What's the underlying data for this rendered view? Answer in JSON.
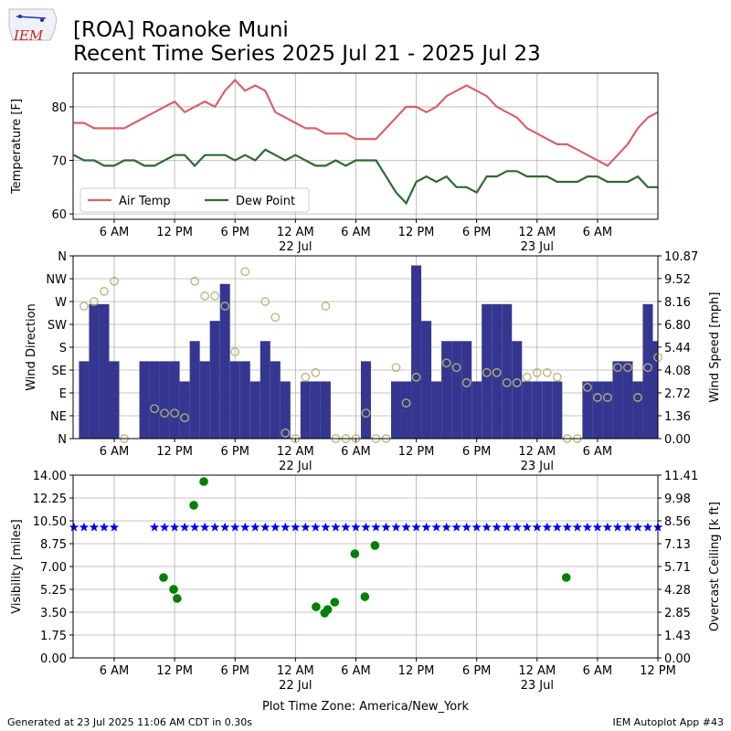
{
  "header": {
    "logo_text": "IEM",
    "title": "[ROA] Roanoke Muni",
    "subtitle": "Recent Time Series 2025 Jul 21 - 2025 Jul 23"
  },
  "footer": {
    "left": "Generated at 23 Jul 2025 11:06 AM CDT in 0.30s",
    "right": "IEM Autoplot App #43"
  },
  "chart_data": [
    {
      "type": "line",
      "ylabel": "Temperature [F]",
      "grid": true,
      "legend": "lower left",
      "xlim": [
        "2025-07-21 01:55",
        "2025-07-23 12:00"
      ],
      "xticks": [
        {
          "value": "2025-07-21 06:00",
          "label": "6 AM"
        },
        {
          "value": "2025-07-21 12:00",
          "label": "12 PM"
        },
        {
          "value": "2025-07-21 18:00",
          "label": "6 PM"
        },
        {
          "value": "2025-07-22 00:00",
          "label": "12 AM",
          "sublabel": "22 Jul"
        },
        {
          "value": "2025-07-22 06:00",
          "label": "6 AM"
        },
        {
          "value": "2025-07-22 12:00",
          "label": "12 PM"
        },
        {
          "value": "2025-07-22 18:00",
          "label": "6 PM"
        },
        {
          "value": "2025-07-23 00:00",
          "label": "12 AM",
          "sublabel": "23 Jul"
        },
        {
          "value": "2025-07-23 06:00",
          "label": "6 AM"
        }
      ],
      "ylim": [
        59,
        86.3
      ],
      "yticks": [
        60,
        70,
        80
      ],
      "x": [
        "2025-07-21 02:00",
        "2025-07-21 03:00",
        "2025-07-21 04:00",
        "2025-07-21 05:00",
        "2025-07-21 06:00",
        "2025-07-21 07:00",
        "2025-07-21 08:00",
        "2025-07-21 09:00",
        "2025-07-21 10:00",
        "2025-07-21 11:00",
        "2025-07-21 12:00",
        "2025-07-21 13:00",
        "2025-07-21 14:00",
        "2025-07-21 15:00",
        "2025-07-21 16:00",
        "2025-07-21 17:00",
        "2025-07-21 18:00",
        "2025-07-21 19:00",
        "2025-07-21 20:00",
        "2025-07-21 21:00",
        "2025-07-21 22:00",
        "2025-07-21 23:00",
        "2025-07-22 00:00",
        "2025-07-22 01:00",
        "2025-07-22 02:00",
        "2025-07-22 03:00",
        "2025-07-22 04:00",
        "2025-07-22 05:00",
        "2025-07-22 06:00",
        "2025-07-22 07:00",
        "2025-07-22 08:00",
        "2025-07-22 09:00",
        "2025-07-22 10:00",
        "2025-07-22 11:00",
        "2025-07-22 12:00",
        "2025-07-22 13:00",
        "2025-07-22 14:00",
        "2025-07-22 15:00",
        "2025-07-22 16:00",
        "2025-07-22 17:00",
        "2025-07-22 18:00",
        "2025-07-22 19:00",
        "2025-07-22 20:00",
        "2025-07-22 21:00",
        "2025-07-22 22:00",
        "2025-07-22 23:00",
        "2025-07-23 00:00",
        "2025-07-23 01:00",
        "2025-07-23 02:00",
        "2025-07-23 03:00",
        "2025-07-23 04:00",
        "2025-07-23 05:00",
        "2025-07-23 06:00",
        "2025-07-23 07:00",
        "2025-07-23 08:00",
        "2025-07-23 09:00",
        "2025-07-23 10:00",
        "2025-07-23 11:00",
        "2025-07-23 12:00"
      ],
      "series": [
        {
          "name": "Air Temp",
          "color": "#d9616b",
          "values": [
            77,
            77,
            76,
            76,
            76,
            76,
            77,
            78,
            79,
            80,
            81,
            79,
            80,
            81,
            80,
            83,
            85,
            83,
            84,
            83,
            79,
            78,
            77,
            76,
            76,
            75,
            75,
            75,
            74,
            74,
            74,
            76,
            78,
            80,
            80,
            79,
            80,
            82,
            83,
            84,
            83,
            82,
            80,
            79,
            78,
            76,
            75,
            74,
            73,
            73,
            72,
            71,
            70,
            69,
            71,
            73,
            76,
            78,
            79
          ]
        },
        {
          "name": "Dew Point",
          "color": "#2d6a32",
          "values": [
            71,
            70,
            70,
            69,
            69,
            70,
            70,
            69,
            69,
            70,
            71,
            71,
            69,
            71,
            71,
            71,
            70,
            71,
            70,
            72,
            71,
            70,
            71,
            70,
            69,
            69,
            70,
            69,
            70,
            70,
            70,
            67,
            64,
            62,
            66,
            67,
            66,
            67,
            65,
            65,
            64,
            67,
            67,
            68,
            68,
            67,
            67,
            67,
            66,
            66,
            66,
            67,
            67,
            66,
            66,
            66,
            67,
            65,
            65
          ]
        }
      ]
    },
    {
      "type": "combo",
      "ylabel": "Wind Direction",
      "y2label": "Wind Speed [mph]",
      "grid": true,
      "xlim": [
        "2025-07-21 01:55",
        "2025-07-23 12:00"
      ],
      "xticks": [
        {
          "value": "2025-07-21 06:00",
          "label": "6 AM"
        },
        {
          "value": "2025-07-21 12:00",
          "label": "12 PM"
        },
        {
          "value": "2025-07-21 18:00",
          "label": "6 PM"
        },
        {
          "value": "2025-07-22 00:00",
          "label": "12 AM",
          "sublabel": "22 Jul"
        },
        {
          "value": "2025-07-22 06:00",
          "label": "6 AM"
        },
        {
          "value": "2025-07-22 12:00",
          "label": "12 PM"
        },
        {
          "value": "2025-07-22 18:00",
          "label": "6 PM"
        },
        {
          "value": "2025-07-23 00:00",
          "label": "12 AM",
          "sublabel": "23 Jul"
        },
        {
          "value": "2025-07-23 06:00",
          "label": "6 AM"
        }
      ],
      "ylim": [
        0,
        360
      ],
      "yticks": [
        {
          "value": 0,
          "label": "N"
        },
        {
          "value": 45,
          "label": "NE"
        },
        {
          "value": 90,
          "label": "E"
        },
        {
          "value": 135,
          "label": "SE"
        },
        {
          "value": 180,
          "label": "S"
        },
        {
          "value": 225,
          "label": "SW"
        },
        {
          "value": 270,
          "label": "W"
        },
        {
          "value": 315,
          "label": "NW"
        },
        {
          "value": 360,
          "label": "N"
        }
      ],
      "y2lim": [
        0,
        10.87
      ],
      "y2ticks": [
        {
          "value": 0,
          "label": "0.00"
        },
        1.36,
        2.72,
        4.08,
        5.44,
        {
          "value": 6.8,
          "label": "6.80"
        },
        8.16,
        9.52,
        10.87
      ],
      "bar_width_hours": 1,
      "x": [
        "2025-07-21 02:00",
        "2025-07-21 03:00",
        "2025-07-21 04:00",
        "2025-07-21 05:00",
        "2025-07-21 06:00",
        "2025-07-21 07:00",
        "2025-07-21 08:00",
        "2025-07-21 09:00",
        "2025-07-21 10:00",
        "2025-07-21 11:00",
        "2025-07-21 12:00",
        "2025-07-21 13:00",
        "2025-07-21 14:00",
        "2025-07-21 15:00",
        "2025-07-21 16:00",
        "2025-07-21 17:00",
        "2025-07-21 18:00",
        "2025-07-21 19:00",
        "2025-07-21 20:00",
        "2025-07-21 21:00",
        "2025-07-21 22:00",
        "2025-07-21 23:00",
        "2025-07-22 00:00",
        "2025-07-22 01:00",
        "2025-07-22 02:00",
        "2025-07-22 03:00",
        "2025-07-22 04:00",
        "2025-07-22 05:00",
        "2025-07-22 06:00",
        "2025-07-22 07:00",
        "2025-07-22 08:00",
        "2025-07-22 09:00",
        "2025-07-22 10:00",
        "2025-07-22 11:00",
        "2025-07-22 12:00",
        "2025-07-22 13:00",
        "2025-07-22 14:00",
        "2025-07-22 15:00",
        "2025-07-22 16:00",
        "2025-07-22 17:00",
        "2025-07-22 18:00",
        "2025-07-22 19:00",
        "2025-07-22 20:00",
        "2025-07-22 21:00",
        "2025-07-22 22:00",
        "2025-07-22 23:00",
        "2025-07-23 00:00",
        "2025-07-23 01:00",
        "2025-07-23 02:00",
        "2025-07-23 03:00",
        "2025-07-23 04:00",
        "2025-07-23 05:00",
        "2025-07-23 06:00",
        "2025-07-23 07:00",
        "2025-07-23 08:00",
        "2025-07-23 09:00",
        "2025-07-23 10:00",
        "2025-07-23 11:00",
        "2025-07-23 12:00"
      ],
      "series": [
        {
          "type": "bar",
          "axis": "y2",
          "color": "#35368f",
          "values": [
            0,
            4.6,
            8.0,
            8.0,
            4.6,
            0,
            0,
            4.6,
            4.6,
            4.6,
            4.6,
            3.4,
            5.8,
            4.6,
            7.0,
            9.2,
            4.6,
            4.6,
            3.4,
            5.8,
            4.6,
            3.4,
            0,
            3.4,
            3.4,
            3.4,
            0,
            0,
            0,
            4.6,
            0,
            0,
            3.4,
            3.4,
            10.3,
            7.0,
            3.4,
            5.8,
            5.8,
            5.8,
            3.4,
            8.0,
            8.0,
            8.0,
            5.8,
            3.4,
            3.4,
            3.4,
            3.4,
            0,
            0,
            3.4,
            3.4,
            3.4,
            4.6,
            4.6,
            3.4,
            8.0,
            5.8
          ]
        },
        {
          "type": "scatter",
          "marker": "open-circle",
          "color": "#b3b67a",
          "values": [
            null,
            261,
            270,
            290,
            310,
            0,
            null,
            null,
            59,
            50,
            50,
            41,
            310,
            281,
            281,
            261,
            171,
            329,
            null,
            270,
            239,
            11,
            0,
            121,
            130,
            261,
            0,
            0,
            0,
            50,
            0,
            0,
            140,
            70,
            121,
            null,
            null,
            149,
            140,
            110,
            null,
            130,
            130,
            110,
            110,
            121,
            130,
            130,
            121,
            0,
            0,
            101,
            81,
            81,
            140,
            140,
            81,
            140,
            160
          ]
        }
      ]
    },
    {
      "type": "scatter",
      "ylabel": "Visibility [miles]",
      "y2label": "Overcast Ceiling [k ft]",
      "y2label_color": "green",
      "grid": true,
      "xlabel": "Plot Time Zone: America/New_York",
      "xlim": [
        "2025-07-21 01:55",
        "2025-07-23 12:00"
      ],
      "xticks": [
        {
          "value": "2025-07-21 06:00",
          "label": "6 AM"
        },
        {
          "value": "2025-07-21 12:00",
          "label": "12 PM"
        },
        {
          "value": "2025-07-21 18:00",
          "label": "6 PM"
        },
        {
          "value": "2025-07-22 00:00",
          "label": "12 AM",
          "sublabel": "22 Jul"
        },
        {
          "value": "2025-07-22 06:00",
          "label": "6 AM"
        },
        {
          "value": "2025-07-22 12:00",
          "label": "12 PM"
        },
        {
          "value": "2025-07-22 18:00",
          "label": "6 PM"
        },
        {
          "value": "2025-07-23 00:00",
          "label": "12 AM",
          "sublabel": "23 Jul"
        },
        {
          "value": "2025-07-23 06:00",
          "label": "6 AM"
        },
        {
          "value": "2025-07-23 12:00",
          "label": "12 PM"
        }
      ],
      "ylim": [
        0,
        14
      ],
      "yticks": [
        {
          "value": 0,
          "label": "0.00"
        },
        1.75,
        {
          "value": 3.5,
          "label": "3.50"
        },
        5.25,
        {
          "value": 7,
          "label": "7.00"
        },
        8.75,
        {
          "value": 10.5,
          "label": "10.50"
        },
        12.25,
        {
          "value": 14,
          "label": "14.00"
        }
      ],
      "y2lim": [
        0,
        11.41
      ],
      "y2ticks": [
        {
          "value": 0,
          "label": "0.00"
        },
        1.43,
        2.85,
        4.28,
        5.71,
        7.13,
        8.56,
        9.98,
        11.41
      ],
      "x": [
        "2025-07-21 02:00",
        "2025-07-21 03:00",
        "2025-07-21 04:00",
        "2025-07-21 05:00",
        "2025-07-21 06:00",
        "2025-07-21 07:00",
        "2025-07-21 08:00",
        "2025-07-21 09:00",
        "2025-07-21 10:00",
        "2025-07-21 11:00",
        "2025-07-21 12:00",
        "2025-07-21 13:00",
        "2025-07-21 14:00",
        "2025-07-21 15:00",
        "2025-07-21 16:00",
        "2025-07-21 17:00",
        "2025-07-21 18:00",
        "2025-07-21 19:00",
        "2025-07-21 20:00",
        "2025-07-21 21:00",
        "2025-07-21 22:00",
        "2025-07-21 23:00",
        "2025-07-22 00:00",
        "2025-07-22 01:00",
        "2025-07-22 02:00",
        "2025-07-22 03:00",
        "2025-07-22 04:00",
        "2025-07-22 05:00",
        "2025-07-22 06:00",
        "2025-07-22 07:00",
        "2025-07-22 08:00",
        "2025-07-22 09:00",
        "2025-07-22 10:00",
        "2025-07-22 11:00",
        "2025-07-22 12:00",
        "2025-07-22 13:00",
        "2025-07-22 14:00",
        "2025-07-22 15:00",
        "2025-07-22 16:00",
        "2025-07-22 17:00",
        "2025-07-22 18:00",
        "2025-07-22 19:00",
        "2025-07-22 20:00",
        "2025-07-22 21:00",
        "2025-07-22 22:00",
        "2025-07-22 23:00",
        "2025-07-23 00:00",
        "2025-07-23 01:00",
        "2025-07-23 02:00",
        "2025-07-23 03:00",
        "2025-07-23 04:00",
        "2025-07-23 05:00",
        "2025-07-23 06:00",
        "2025-07-23 07:00",
        "2025-07-23 08:00",
        "2025-07-23 09:00",
        "2025-07-23 10:00",
        "2025-07-23 11:00",
        "2025-07-23 12:00"
      ],
      "series": [
        {
          "marker": "star",
          "color": "#0000ff",
          "values": [
            10,
            10,
            10,
            10,
            10,
            null,
            null,
            null,
            10,
            10,
            10,
            10,
            10,
            10,
            10,
            10,
            10,
            10,
            10,
            10,
            10,
            10,
            10,
            10,
            10,
            10,
            10,
            10,
            10,
            10,
            10,
            10,
            10,
            10,
            10,
            10,
            10,
            10,
            10,
            10,
            10,
            10,
            10,
            10,
            10,
            10,
            10,
            10,
            10,
            10,
            10,
            10,
            10,
            10,
            10,
            10,
            10,
            10,
            10
          ]
        },
        {
          "marker": "circle",
          "axis": "y2",
          "color": "#008000",
          "x": [
            "2025-07-21 10:54",
            "2025-07-21 11:54",
            "2025-07-21 12:15",
            "2025-07-21 13:54",
            "2025-07-21 14:54",
            "2025-07-22 02:03",
            "2025-07-22 02:54",
            "2025-07-22 03:12",
            "2025-07-22 03:54",
            "2025-07-22 05:54",
            "2025-07-22 06:54",
            "2025-07-22 07:54",
            "2025-07-23 02:54"
          ],
          "values": [
            5.02,
            4.28,
            3.71,
            9.53,
            11.01,
            3.19,
            2.8,
            3.02,
            3.48,
            6.5,
            3.82,
            7.02,
            5.02
          ]
        }
      ]
    }
  ]
}
